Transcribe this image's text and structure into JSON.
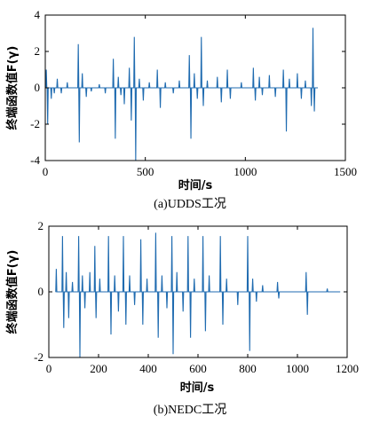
{
  "colors": {
    "series": "#1f6bb0",
    "axis": "#000000"
  },
  "chart_data": [
    {
      "type": "line",
      "caption": "(a)UDDS工况",
      "xlabel": "时间/s",
      "ylabel": "终端函数值F(γ)",
      "xlim": [
        0,
        1500
      ],
      "ylim": [
        -4,
        4
      ],
      "x_ticks": [
        0,
        500,
        1000,
        1500
      ],
      "y_ticks": [
        -4,
        -2,
        0,
        2,
        4
      ],
      "grid": false,
      "series": [
        {
          "spikes": [
            {
              "x": 5,
              "y": 1.0
            },
            {
              "x": 12,
              "y": -2.0
            },
            {
              "x": 30,
              "y": -0.6
            },
            {
              "x": 45,
              "y": -0.3
            },
            {
              "x": 60,
              "y": 0.5
            },
            {
              "x": 80,
              "y": -0.3
            },
            {
              "x": 110,
              "y": 0.3
            },
            {
              "x": 165,
              "y": 2.4
            },
            {
              "x": 170,
              "y": -3.0
            },
            {
              "x": 185,
              "y": 0.8
            },
            {
              "x": 205,
              "y": -0.5
            },
            {
              "x": 230,
              "y": -0.2
            },
            {
              "x": 270,
              "y": 0.2
            },
            {
              "x": 300,
              "y": -0.3
            },
            {
              "x": 340,
              "y": 1.6
            },
            {
              "x": 350,
              "y": -2.8
            },
            {
              "x": 365,
              "y": 0.6
            },
            {
              "x": 378,
              "y": -0.4
            },
            {
              "x": 395,
              "y": -0.9
            },
            {
              "x": 420,
              "y": 1.1
            },
            {
              "x": 430,
              "y": -1.8
            },
            {
              "x": 445,
              "y": 2.8
            },
            {
              "x": 452,
              "y": -4.0
            },
            {
              "x": 470,
              "y": 0.5
            },
            {
              "x": 490,
              "y": -0.7
            },
            {
              "x": 520,
              "y": 0.3
            },
            {
              "x": 560,
              "y": 1.0
            },
            {
              "x": 575,
              "y": -1.1
            },
            {
              "x": 600,
              "y": 0.3
            },
            {
              "x": 640,
              "y": -0.3
            },
            {
              "x": 670,
              "y": 0.4
            },
            {
              "x": 720,
              "y": 1.8
            },
            {
              "x": 728,
              "y": -2.8
            },
            {
              "x": 745,
              "y": 0.8
            },
            {
              "x": 760,
              "y": -0.6
            },
            {
              "x": 780,
              "y": 2.8
            },
            {
              "x": 790,
              "y": -1.0
            },
            {
              "x": 810,
              "y": 0.4
            },
            {
              "x": 860,
              "y": 0.6
            },
            {
              "x": 880,
              "y": -0.8
            },
            {
              "x": 910,
              "y": 1.0
            },
            {
              "x": 925,
              "y": -0.6
            },
            {
              "x": 980,
              "y": 0.3
            },
            {
              "x": 1040,
              "y": 1.1
            },
            {
              "x": 1050,
              "y": -0.7
            },
            {
              "x": 1070,
              "y": 0.6
            },
            {
              "x": 1085,
              "y": -0.4
            },
            {
              "x": 1120,
              "y": 0.7
            },
            {
              "x": 1150,
              "y": -0.5
            },
            {
              "x": 1190,
              "y": 1.0
            },
            {
              "x": 1205,
              "y": -2.4
            },
            {
              "x": 1220,
              "y": 0.5
            },
            {
              "x": 1260,
              "y": 0.8
            },
            {
              "x": 1280,
              "y": -0.6
            },
            {
              "x": 1300,
              "y": 0.4
            },
            {
              "x": 1330,
              "y": -1.0
            },
            {
              "x": 1338,
              "y": 3.3
            },
            {
              "x": 1345,
              "y": -1.3
            },
            {
              "x": 1360,
              "y": 0.0
            }
          ]
        }
      ]
    },
    {
      "type": "line",
      "caption": "(b)NEDC工况",
      "xlabel": "时间/s",
      "ylabel": "终端函数值F(γ)",
      "xlim": [
        0,
        1200
      ],
      "ylim": [
        -2,
        2
      ],
      "x_ticks": [
        0,
        200,
        400,
        600,
        800,
        1000,
        1200
      ],
      "y_ticks": [
        -2,
        0,
        2
      ],
      "grid": false,
      "series": [
        {
          "spikes": [
            {
              "x": 30,
              "y": 0.7
            },
            {
              "x": 55,
              "y": 1.7
            },
            {
              "x": 60,
              "y": -1.1
            },
            {
              "x": 70,
              "y": 0.6
            },
            {
              "x": 80,
              "y": -0.8
            },
            {
              "x": 95,
              "y": 0.3
            },
            {
              "x": 120,
              "y": 1.7
            },
            {
              "x": 125,
              "y": -2.0
            },
            {
              "x": 135,
              "y": 0.5
            },
            {
              "x": 145,
              "y": -0.5
            },
            {
              "x": 165,
              "y": 0.6
            },
            {
              "x": 185,
              "y": 1.4
            },
            {
              "x": 190,
              "y": -0.8
            },
            {
              "x": 205,
              "y": 0.4
            },
            {
              "x": 240,
              "y": 1.7
            },
            {
              "x": 250,
              "y": -1.3
            },
            {
              "x": 265,
              "y": 0.5
            },
            {
              "x": 280,
              "y": -0.6
            },
            {
              "x": 300,
              "y": 1.7
            },
            {
              "x": 310,
              "y": -1.0
            },
            {
              "x": 325,
              "y": 0.5
            },
            {
              "x": 345,
              "y": -0.4
            },
            {
              "x": 370,
              "y": 1.6
            },
            {
              "x": 378,
              "y": -1.0
            },
            {
              "x": 395,
              "y": 0.4
            },
            {
              "x": 430,
              "y": 1.8
            },
            {
              "x": 440,
              "y": -1.4
            },
            {
              "x": 455,
              "y": 0.5
            },
            {
              "x": 475,
              "y": -0.5
            },
            {
              "x": 495,
              "y": 1.7
            },
            {
              "x": 500,
              "y": -1.9
            },
            {
              "x": 515,
              "y": 0.6
            },
            {
              "x": 540,
              "y": -0.6
            },
            {
              "x": 560,
              "y": 1.7
            },
            {
              "x": 570,
              "y": -1.4
            },
            {
              "x": 585,
              "y": 0.4
            },
            {
              "x": 620,
              "y": 1.7
            },
            {
              "x": 630,
              "y": -1.2
            },
            {
              "x": 645,
              "y": 0.5
            },
            {
              "x": 690,
              "y": 1.7
            },
            {
              "x": 700,
              "y": -1.0
            },
            {
              "x": 715,
              "y": 0.4
            },
            {
              "x": 760,
              "y": -0.4
            },
            {
              "x": 800,
              "y": 1.7
            },
            {
              "x": 808,
              "y": -1.8
            },
            {
              "x": 820,
              "y": 0.4
            },
            {
              "x": 835,
              "y": -0.3
            },
            {
              "x": 860,
              "y": 0.2
            },
            {
              "x": 920,
              "y": 0.3
            },
            {
              "x": 925,
              "y": -0.2
            },
            {
              "x": 1035,
              "y": 0.6
            },
            {
              "x": 1040,
              "y": -0.7
            },
            {
              "x": 1120,
              "y": 0.1
            },
            {
              "x": 1170,
              "y": 0.0
            }
          ]
        }
      ]
    }
  ]
}
